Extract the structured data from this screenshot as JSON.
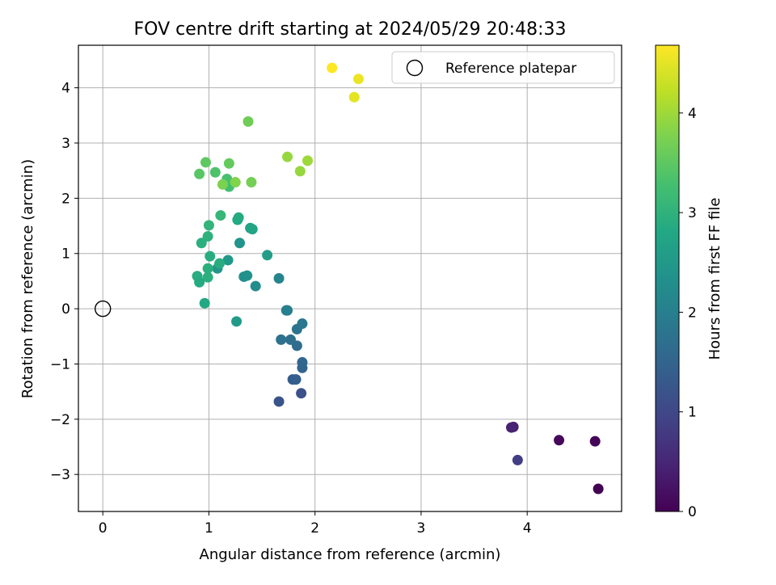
{
  "chart_data": {
    "type": "scatter",
    "title": "FOV centre drift starting at 2024/05/29 20:48:33",
    "xlabel": "Angular distance from reference (arcmin)",
    "ylabel": "Rotation from reference (arcmin)",
    "xlim": [
      -0.23,
      4.89
    ],
    "ylim": [
      -3.67,
      4.77
    ],
    "xticks": [
      0,
      1,
      2,
      3,
      4
    ],
    "yticks": [
      -3,
      -2,
      -1,
      0,
      1,
      2,
      3,
      4
    ],
    "xtick_labels": [
      "0",
      "1",
      "2",
      "3",
      "4"
    ],
    "ytick_labels": [
      "−3",
      "−2",
      "−1",
      "0",
      "1",
      "2",
      "3",
      "4"
    ],
    "grid": true,
    "legend": {
      "placement": "top-right",
      "entries": [
        {
          "label": "Reference platepar",
          "marker": "open-circle"
        }
      ]
    },
    "reference_point": {
      "x": 0,
      "y": 0
    },
    "colorbar": {
      "label": "Hours from first FF file",
      "colormap": "viridis",
      "range": [
        0,
        4.68
      ],
      "ticks": [
        0,
        1,
        2,
        3,
        4
      ],
      "tick_labels": [
        "0",
        "1",
        "2",
        "3",
        "4"
      ]
    },
    "series": [
      {
        "points": [
          {
            "x": 4.67,
            "y": -3.26,
            "c": 0.0
          },
          {
            "x": 4.64,
            "y": -2.4,
            "c": 0.05
          },
          {
            "x": 4.3,
            "y": -2.38,
            "c": 0.1
          },
          {
            "x": 3.87,
            "y": -2.14,
            "c": 0.4
          },
          {
            "x": 3.85,
            "y": -2.15,
            "c": 0.45
          },
          {
            "x": 3.91,
            "y": -2.74,
            "c": 0.85
          },
          {
            "x": 1.87,
            "y": -1.53,
            "c": 1.15
          },
          {
            "x": 1.66,
            "y": -1.68,
            "c": 1.2
          },
          {
            "x": 1.79,
            "y": -1.28,
            "c": 1.35
          },
          {
            "x": 1.82,
            "y": -1.28,
            "c": 1.4
          },
          {
            "x": 1.88,
            "y": -1.07,
            "c": 1.5
          },
          {
            "x": 1.88,
            "y": -0.97,
            "c": 1.55
          },
          {
            "x": 1.83,
            "y": -0.67,
            "c": 1.65
          },
          {
            "x": 1.77,
            "y": -0.56,
            "c": 1.7
          },
          {
            "x": 1.68,
            "y": -0.56,
            "c": 1.75
          },
          {
            "x": 1.83,
            "y": -0.37,
            "c": 1.8
          },
          {
            "x": 1.88,
            "y": -0.27,
            "c": 1.85
          },
          {
            "x": 1.74,
            "y": -0.03,
            "c": 1.95
          },
          {
            "x": 1.73,
            "y": -0.03,
            "c": 2.0
          },
          {
            "x": 1.66,
            "y": 0.55,
            "c": 2.1
          },
          {
            "x": 1.44,
            "y": 0.41,
            "c": 2.25
          },
          {
            "x": 1.33,
            "y": 0.58,
            "c": 2.3
          },
          {
            "x": 1.36,
            "y": 0.6,
            "c": 2.35
          },
          {
            "x": 1.29,
            "y": 1.19,
            "c": 2.4
          },
          {
            "x": 1.08,
            "y": 0.73,
            "c": 2.45
          },
          {
            "x": 1.18,
            "y": 0.88,
            "c": 2.5
          },
          {
            "x": 1.26,
            "y": -0.23,
            "c": 2.55
          },
          {
            "x": 1.55,
            "y": 0.97,
            "c": 2.6
          },
          {
            "x": 1.39,
            "y": 1.46,
            "c": 2.7
          },
          {
            "x": 1.41,
            "y": 1.44,
            "c": 2.75
          },
          {
            "x": 1.27,
            "y": 1.61,
            "c": 2.8
          },
          {
            "x": 1.28,
            "y": 1.65,
            "c": 2.85
          },
          {
            "x": 1.1,
            "y": 0.82,
            "c": 2.9
          },
          {
            "x": 1.01,
            "y": 0.95,
            "c": 2.9
          },
          {
            "x": 0.99,
            "y": 0.73,
            "c": 2.95
          },
          {
            "x": 0.99,
            "y": 0.57,
            "c": 2.95
          },
          {
            "x": 0.89,
            "y": 0.59,
            "c": 2.9
          },
          {
            "x": 0.91,
            "y": 0.48,
            "c": 2.85
          },
          {
            "x": 0.96,
            "y": 0.1,
            "c": 2.8
          },
          {
            "x": 0.93,
            "y": 1.19,
            "c": 2.95
          },
          {
            "x": 0.99,
            "y": 1.31,
            "c": 3.0
          },
          {
            "x": 1.0,
            "y": 1.51,
            "c": 3.05
          },
          {
            "x": 1.11,
            "y": 1.69,
            "c": 3.1
          },
          {
            "x": 1.19,
            "y": 2.21,
            "c": 3.25
          },
          {
            "x": 1.17,
            "y": 2.35,
            "c": 3.3
          },
          {
            "x": 1.06,
            "y": 2.47,
            "c": 3.35
          },
          {
            "x": 0.91,
            "y": 2.44,
            "c": 3.45
          },
          {
            "x": 0.97,
            "y": 2.65,
            "c": 3.5
          },
          {
            "x": 1.19,
            "y": 2.63,
            "c": 3.55
          },
          {
            "x": 1.13,
            "y": 2.25,
            "c": 3.75
          },
          {
            "x": 1.25,
            "y": 2.29,
            "c": 3.8
          },
          {
            "x": 1.4,
            "y": 2.29,
            "c": 3.7
          },
          {
            "x": 1.37,
            "y": 3.39,
            "c": 3.65
          },
          {
            "x": 1.74,
            "y": 2.75,
            "c": 3.95
          },
          {
            "x": 1.86,
            "y": 2.49,
            "c": 3.95
          },
          {
            "x": 1.93,
            "y": 2.68,
            "c": 4.0
          },
          {
            "x": 2.37,
            "y": 3.83,
            "c": 4.5
          },
          {
            "x": 2.41,
            "y": 4.16,
            "c": 4.55
          },
          {
            "x": 2.16,
            "y": 4.36,
            "c": 4.68
          }
        ]
      }
    ]
  }
}
